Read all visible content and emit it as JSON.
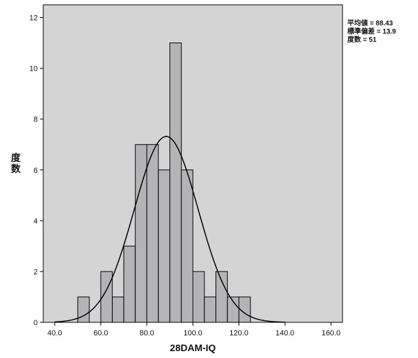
{
  "chart_data": {
    "type": "bar",
    "xlabel": "28DAM-IQ",
    "ylabel": "度数",
    "xlim": [
      35,
      165
    ],
    "ylim": [
      0,
      12.5
    ],
    "x_ticks": [
      40,
      60,
      80,
      100,
      120,
      140,
      160
    ],
    "x_tick_labels": [
      "40.0",
      "60.0",
      "80.0",
      "100.0",
      "120.0",
      "140.0",
      "160.0"
    ],
    "y_ticks": [
      0,
      2,
      4,
      6,
      8,
      10,
      12
    ],
    "y_tick_labels": [
      "0",
      "2",
      "4",
      "6",
      "8",
      "10",
      "12"
    ],
    "bin_width": 5,
    "bins": [
      {
        "start": 50,
        "end": 55,
        "count": 1
      },
      {
        "start": 55,
        "end": 60,
        "count": 0
      },
      {
        "start": 60,
        "end": 65,
        "count": 2
      },
      {
        "start": 65,
        "end": 70,
        "count": 1
      },
      {
        "start": 70,
        "end": 75,
        "count": 3
      },
      {
        "start": 75,
        "end": 80,
        "count": 7
      },
      {
        "start": 80,
        "end": 85,
        "count": 7
      },
      {
        "start": 85,
        "end": 90,
        "count": 6
      },
      {
        "start": 90,
        "end": 95,
        "count": 11
      },
      {
        "start": 95,
        "end": 100,
        "count": 6
      },
      {
        "start": 100,
        "end": 105,
        "count": 2
      },
      {
        "start": 105,
        "end": 110,
        "count": 1
      },
      {
        "start": 110,
        "end": 115,
        "count": 2
      },
      {
        "start": 115,
        "end": 120,
        "count": 1
      },
      {
        "start": 120,
        "end": 125,
        "count": 1
      }
    ],
    "normal_curve": {
      "mean": 88.43,
      "sd": 13.9,
      "n": 51
    },
    "grid": false,
    "legend": "right",
    "colors": {
      "plot_background": "#d4d4d4",
      "bar_fill": "#b4b4b6",
      "bar_edge": "#000000",
      "curve": "#000000"
    }
  },
  "stats": {
    "mean_label": "平均値 = 88.43",
    "sd_label": "標準偏差 = 13.9",
    "n_label": "度数 = 51"
  }
}
